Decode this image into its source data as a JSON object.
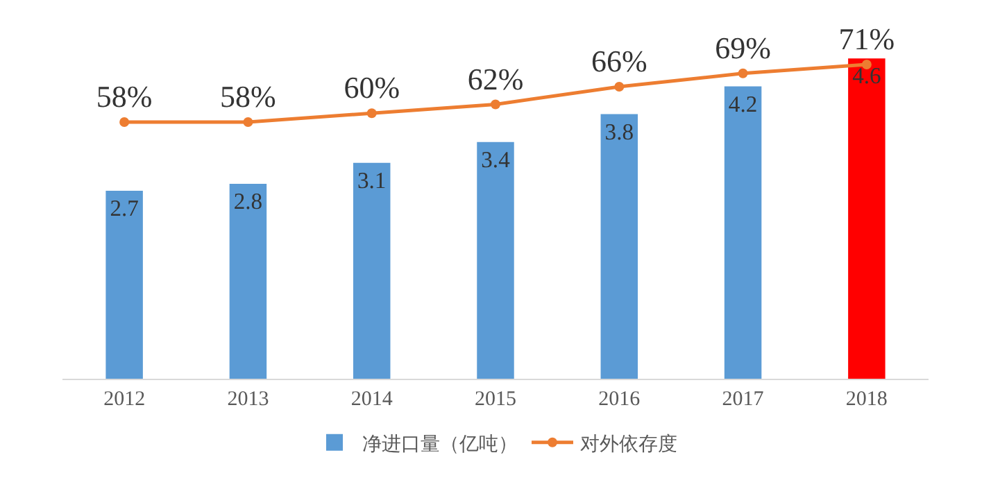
{
  "chart_data": {
    "type": "bar",
    "categories": [
      "2012",
      "2013",
      "2014",
      "2015",
      "2016",
      "2017",
      "2018"
    ],
    "series": [
      {
        "name": "净进口量（亿吨）",
        "color": "#5b9bd5",
        "colors": [
          "#5b9bd5",
          "#5b9bd5",
          "#5b9bd5",
          "#5b9bd5",
          "#5b9bd5",
          "#5b9bd5",
          "#ff0000"
        ],
        "values": [
          2.7,
          2.8,
          3.1,
          3.4,
          3.8,
          4.2,
          4.6
        ],
        "value_labels": [
          "2.7",
          "2.8",
          "3.1",
          "3.4",
          "3.8",
          "4.2",
          "4.6"
        ]
      },
      {
        "name": "对外依存度",
        "type": "line",
        "axis": "y2",
        "color": "#ed7d31",
        "values": [
          58,
          58,
          60,
          62,
          66,
          69,
          71
        ],
        "value_labels": [
          "58%",
          "58%",
          "60%",
          "62%",
          "66%",
          "69%",
          "71%"
        ]
      }
    ],
    "tick_labels": "x",
    "legend": "bottom",
    "marker": "circle",
    "line_style": "solid"
  }
}
